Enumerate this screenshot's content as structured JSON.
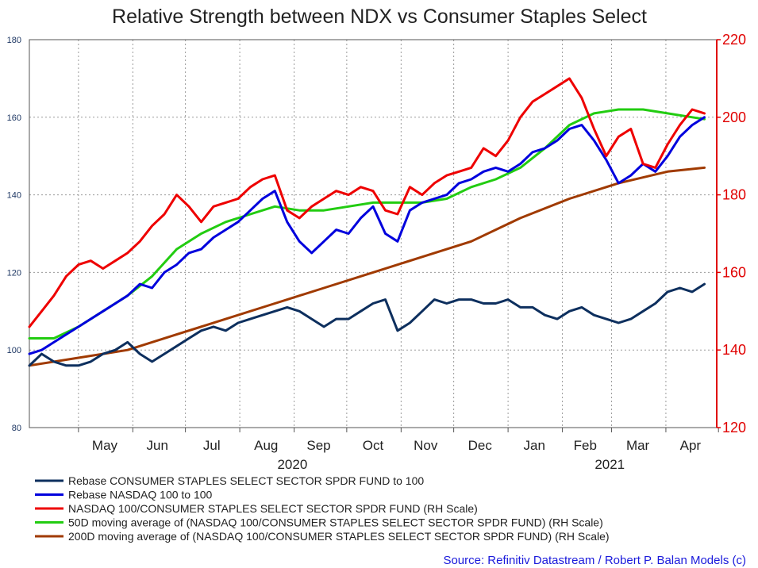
{
  "chart_data": {
    "type": "line",
    "title": "Relative Strength between NDX vs Consumer Staples Select",
    "source": "Source: Refinitiv Datastream / Robert P. Balan Models (c)",
    "x_ticks": [
      "May",
      "Jun",
      "Jul",
      "Aug",
      "Sep",
      "Oct",
      "Nov",
      "Dec",
      "Jan",
      "Feb",
      "Mar",
      "Apr"
    ],
    "year_labels": [
      "2020",
      "2021"
    ],
    "x_range": [
      "2020-04-03",
      "2021-04-30"
    ],
    "y_left": {
      "range": [
        80,
        180
      ],
      "ticks": [
        "80",
        "100",
        "120",
        "140",
        "160",
        "180"
      ],
      "color": "#1f3864"
    },
    "y_right": {
      "range": [
        120,
        220
      ],
      "ticks": [
        "120",
        "140",
        "160",
        "180",
        "200",
        "220"
      ],
      "color": "#e00000"
    },
    "grid": true,
    "legend_position": "bottom",
    "series": [
      {
        "name": "Rebase CONSUMER STAPLES SELECT SECTOR SPDR FUND to 100",
        "color": "#0d2f5e",
        "axis": "left",
        "x": [
          "2020-04-03",
          "2020-04-10",
          "2020-04-17",
          "2020-04-24",
          "2020-05-01",
          "2020-05-08",
          "2020-05-15",
          "2020-05-22",
          "2020-05-29",
          "2020-06-05",
          "2020-06-12",
          "2020-06-19",
          "2020-06-26",
          "2020-07-03",
          "2020-07-10",
          "2020-07-17",
          "2020-07-24",
          "2020-07-31",
          "2020-08-07",
          "2020-08-14",
          "2020-08-21",
          "2020-08-28",
          "2020-09-04",
          "2020-09-11",
          "2020-09-18",
          "2020-09-25",
          "2020-10-02",
          "2020-10-09",
          "2020-10-16",
          "2020-10-23",
          "2020-10-30",
          "2020-11-06",
          "2020-11-13",
          "2020-11-20",
          "2020-11-27",
          "2020-12-04",
          "2020-12-11",
          "2020-12-18",
          "2020-12-25",
          "2021-01-01",
          "2021-01-08",
          "2021-01-15",
          "2021-01-22",
          "2021-01-29",
          "2021-02-05",
          "2021-02-12",
          "2021-02-19",
          "2021-02-26",
          "2021-03-05",
          "2021-03-12",
          "2021-03-19",
          "2021-03-26",
          "2021-04-02",
          "2021-04-09",
          "2021-04-16",
          "2021-04-23"
        ],
        "values": [
          96,
          99,
          97,
          96,
          96,
          97,
          99,
          100,
          102,
          99,
          97,
          99,
          101,
          103,
          105,
          106,
          105,
          107,
          108,
          109,
          110,
          111,
          110,
          108,
          106,
          108,
          108,
          110,
          112,
          113,
          105,
          107,
          110,
          113,
          112,
          113,
          113,
          112,
          112,
          113,
          111,
          111,
          109,
          108,
          110,
          111,
          109,
          108,
          107,
          108,
          110,
          112,
          115,
          116,
          115,
          117
        ]
      },
      {
        "name": "Rebase NASDAQ 100 to 100",
        "color": "#0000dd",
        "axis": "left",
        "x": [
          "2020-04-03",
          "2020-04-10",
          "2020-04-17",
          "2020-04-24",
          "2020-05-01",
          "2020-05-08",
          "2020-05-15",
          "2020-05-22",
          "2020-05-29",
          "2020-06-05",
          "2020-06-12",
          "2020-06-19",
          "2020-06-26",
          "2020-07-03",
          "2020-07-10",
          "2020-07-17",
          "2020-07-24",
          "2020-07-31",
          "2020-08-07",
          "2020-08-14",
          "2020-08-21",
          "2020-08-28",
          "2020-09-04",
          "2020-09-11",
          "2020-09-18",
          "2020-09-25",
          "2020-10-02",
          "2020-10-09",
          "2020-10-16",
          "2020-10-23",
          "2020-10-30",
          "2020-11-06",
          "2020-11-13",
          "2020-11-20",
          "2020-11-27",
          "2020-12-04",
          "2020-12-11",
          "2020-12-18",
          "2020-12-25",
          "2021-01-01",
          "2021-01-08",
          "2021-01-15",
          "2021-01-22",
          "2021-01-29",
          "2021-02-05",
          "2021-02-12",
          "2021-02-19",
          "2021-02-26",
          "2021-03-05",
          "2021-03-12",
          "2021-03-19",
          "2021-03-26",
          "2021-04-02",
          "2021-04-09",
          "2021-04-16",
          "2021-04-23"
        ],
        "values": [
          99,
          100,
          102,
          104,
          106,
          108,
          110,
          112,
          114,
          117,
          116,
          120,
          122,
          125,
          126,
          129,
          131,
          133,
          136,
          139,
          141,
          133,
          128,
          125,
          128,
          131,
          130,
          134,
          137,
          130,
          128,
          136,
          138,
          139,
          140,
          143,
          144,
          146,
          147,
          146,
          148,
          151,
          152,
          154,
          157,
          158,
          154,
          149,
          143,
          145,
          148,
          146,
          150,
          155,
          158,
          160
        ]
      },
      {
        "name": "NASDAQ 100/CONSUMER STAPLES SELECT SECTOR SPDR FUND (RH Scale)",
        "color": "#ee0000",
        "axis": "right",
        "x": [
          "2020-04-03",
          "2020-04-10",
          "2020-04-17",
          "2020-04-24",
          "2020-05-01",
          "2020-05-08",
          "2020-05-15",
          "2020-05-22",
          "2020-05-29",
          "2020-06-05",
          "2020-06-12",
          "2020-06-19",
          "2020-06-26",
          "2020-07-03",
          "2020-07-10",
          "2020-07-17",
          "2020-07-24",
          "2020-07-31",
          "2020-08-07",
          "2020-08-14",
          "2020-08-21",
          "2020-08-28",
          "2020-09-04",
          "2020-09-11",
          "2020-09-18",
          "2020-09-25",
          "2020-10-02",
          "2020-10-09",
          "2020-10-16",
          "2020-10-23",
          "2020-10-30",
          "2020-11-06",
          "2020-11-13",
          "2020-11-20",
          "2020-11-27",
          "2020-12-04",
          "2020-12-11",
          "2020-12-18",
          "2020-12-25",
          "2021-01-01",
          "2021-01-08",
          "2021-01-15",
          "2021-01-22",
          "2021-01-29",
          "2021-02-05",
          "2021-02-12",
          "2021-02-19",
          "2021-02-26",
          "2021-03-05",
          "2021-03-12",
          "2021-03-19",
          "2021-03-26",
          "2021-04-02",
          "2021-04-09",
          "2021-04-16",
          "2021-04-23"
        ],
        "values": [
          146,
          150,
          154,
          159,
          162,
          163,
          161,
          163,
          165,
          168,
          172,
          175,
          180,
          177,
          173,
          177,
          178,
          179,
          182,
          184,
          185,
          176,
          174,
          177,
          179,
          181,
          180,
          182,
          181,
          176,
          175,
          182,
          180,
          183,
          185,
          186,
          187,
          192,
          190,
          194,
          200,
          204,
          206,
          208,
          210,
          205,
          197,
          190,
          195,
          197,
          188,
          187,
          193,
          198,
          202,
          201
        ]
      },
      {
        "name": "50D moving average of (NASDAQ 100/CONSUMER STAPLES SELECT SECTOR SPDR FUND) (RH Scale)",
        "color": "#22cc11",
        "axis": "right",
        "x": [
          "2020-04-03",
          "2020-04-17",
          "2020-05-01",
          "2020-05-15",
          "2020-05-29",
          "2020-06-12",
          "2020-06-26",
          "2020-07-10",
          "2020-07-24",
          "2020-08-07",
          "2020-08-21",
          "2020-09-04",
          "2020-09-18",
          "2020-10-02",
          "2020-10-16",
          "2020-10-30",
          "2020-11-13",
          "2020-11-27",
          "2020-12-11",
          "2020-12-25",
          "2021-01-08",
          "2021-01-22",
          "2021-02-05",
          "2021-02-19",
          "2021-03-05",
          "2021-03-19",
          "2021-04-02",
          "2021-04-16",
          "2021-04-23"
        ],
        "values": [
          143,
          143,
          146,
          150,
          154,
          159,
          166,
          170,
          173,
          175,
          177,
          176,
          176,
          177,
          178,
          178,
          178,
          179,
          182,
          184,
          187,
          192,
          198,
          201,
          202,
          202,
          201,
          200,
          199.5
        ]
      },
      {
        "name": "200D moving average of (NASDAQ 100/CONSUMER STAPLES SELECT SECTOR SPDR FUND) (RH Scale)",
        "color": "#a03a00",
        "axis": "right",
        "x": [
          "2020-04-03",
          "2020-05-01",
          "2020-05-29",
          "2020-06-26",
          "2020-07-24",
          "2020-08-21",
          "2020-09-18",
          "2020-10-16",
          "2020-11-13",
          "2020-12-11",
          "2021-01-08",
          "2021-02-05",
          "2021-03-05",
          "2021-04-02",
          "2021-04-23"
        ],
        "values": [
          136,
          138,
          140,
          144,
          148,
          152,
          156,
          160,
          164,
          168,
          174,
          179,
          183,
          186,
          187
        ]
      }
    ]
  }
}
